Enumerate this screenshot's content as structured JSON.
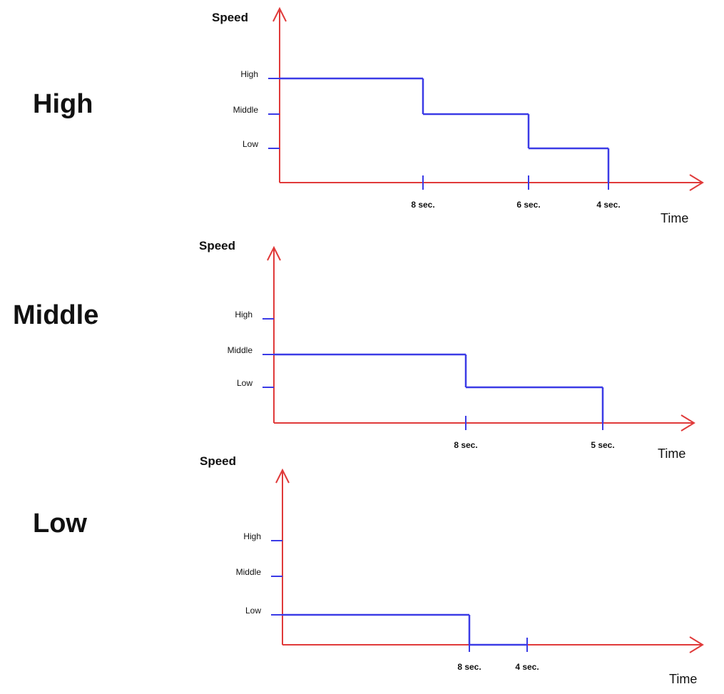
{
  "colors": {
    "axis": "#e03a3a",
    "series": "#3b3be6",
    "tick": "#3b3be6",
    "text": "#111111"
  },
  "chart_data": [
    {
      "type": "line",
      "title": "High",
      "ylabel": "Speed",
      "xlabel": "Time",
      "y_categories": [
        "Low",
        "Middle",
        "High"
      ],
      "x_ticks": [
        "8 sec.",
        "6 sec.",
        "4 sec."
      ],
      "steps": [
        {
          "level": "High",
          "until": "8 sec."
        },
        {
          "level": "Middle",
          "until": "6 sec."
        },
        {
          "level": "Low",
          "until": "4 sec."
        }
      ],
      "grid": false
    },
    {
      "type": "line",
      "title": "Middle",
      "ylabel": "Speed",
      "xlabel": "Time",
      "y_categories": [
        "Low",
        "Middle",
        "High"
      ],
      "x_ticks": [
        "8 sec.",
        "5 sec."
      ],
      "steps": [
        {
          "level": "Middle",
          "until": "8 sec."
        },
        {
          "level": "Low",
          "until": "5 sec."
        }
      ],
      "grid": false
    },
    {
      "type": "line",
      "title": "Low",
      "ylabel": "Speed",
      "xlabel": "Time",
      "y_categories": [
        "Low",
        "Middle",
        "High"
      ],
      "x_ticks": [
        "8 sec.",
        "4 sec."
      ],
      "steps": [
        {
          "level": "Low",
          "until": "8 sec."
        },
        {
          "level": null,
          "until": "4 sec."
        }
      ],
      "grid": false
    }
  ]
}
